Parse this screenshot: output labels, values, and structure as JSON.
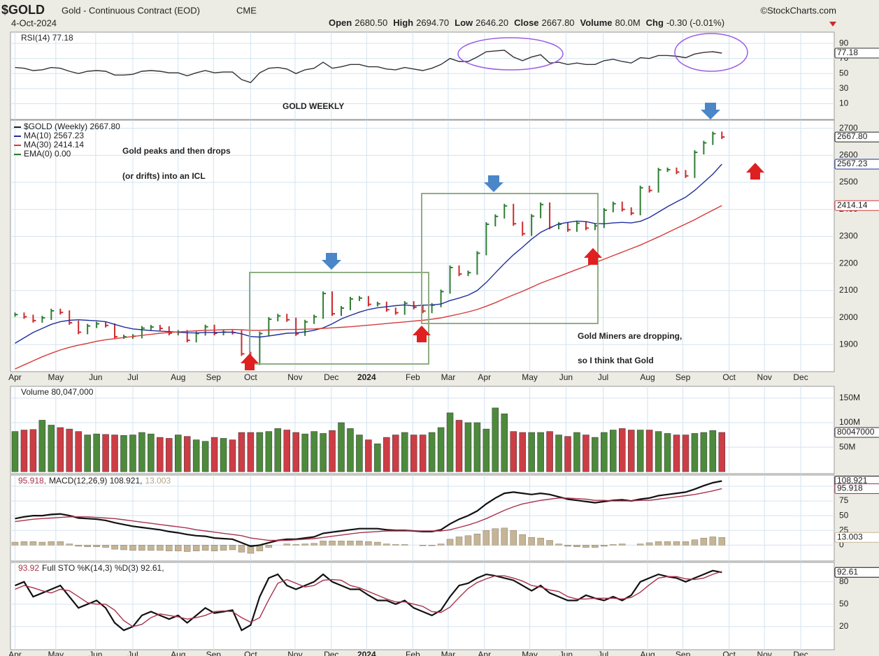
{
  "header": {
    "symbol": "$GOLD",
    "name": "Gold - Continuous Contract (EOD)",
    "exchange": "CME",
    "source": "©StockCharts.com",
    "date": "4-Oct-2024",
    "quote": [
      {
        "label": "Open",
        "value": "2680.50"
      },
      {
        "label": "High",
        "value": "2694.70"
      },
      {
        "label": "Low",
        "value": "2646.20"
      },
      {
        "label": "Close",
        "value": "2667.80"
      },
      {
        "label": "Volume",
        "value": "80.0M"
      },
      {
        "label": "Chg",
        "value": "-0.30 (-0.01%)"
      }
    ]
  },
  "annotations": [
    "GOLD WEEKLY",
    "Gold peaks and then drops",
    "(or drifts) into an ICL",
    "Gold Miners are dropping,",
    "so I think that Gold"
  ],
  "chart_data": [
    {
      "type": "line",
      "label": "RSI(14) 77.18",
      "ylim": [
        -11,
        105
      ],
      "yticks": [
        10,
        30,
        50,
        70,
        90
      ],
      "grid": true,
      "series": [
        {
          "name": "RSI(14)",
          "type": "line",
          "color": "#333333",
          "last_label": "77.18",
          "values": [
            58,
            57,
            54,
            55,
            58,
            57,
            53,
            50,
            53,
            54,
            53,
            48,
            48,
            49,
            53,
            54,
            53,
            51,
            51,
            47,
            51,
            54,
            51,
            52,
            52,
            42,
            38,
            51,
            57,
            58,
            56,
            50,
            55,
            57,
            65,
            57,
            59,
            62,
            62,
            59,
            59,
            56,
            55,
            58,
            56,
            54,
            57,
            62,
            70,
            66,
            66,
            72,
            79,
            80,
            81,
            72,
            67,
            72,
            75,
            64,
            65,
            62,
            64,
            62,
            62,
            67,
            69,
            66,
            64,
            71,
            70,
            74,
            74,
            73,
            71,
            76,
            78,
            79,
            77.18
          ]
        }
      ]
    },
    {
      "type": "line",
      "xlim": [
        -0.5,
        90.4
      ],
      "xticks": [
        {
          "value": 0,
          "label": "Apr"
        },
        {
          "value": 4.5,
          "label": "May"
        },
        {
          "value": 8.9,
          "label": "Jun"
        },
        {
          "value": 13,
          "label": "Jul"
        },
        {
          "value": 18,
          "label": "Aug"
        },
        {
          "value": 21.9,
          "label": "Sep"
        },
        {
          "value": 26,
          "label": "Oct"
        },
        {
          "value": 30.9,
          "label": "Nov"
        },
        {
          "value": 34.9,
          "label": "Dec"
        },
        {
          "value": 38.8,
          "label": "2024"
        },
        {
          "value": 43.9,
          "label": "Feb"
        },
        {
          "value": 47.8,
          "label": "Mar"
        },
        {
          "value": 51.8,
          "label": "Apr"
        },
        {
          "value": 56.8,
          "label": "May"
        },
        {
          "value": 60.8,
          "label": "Jun"
        },
        {
          "value": 64.9,
          "label": "Jul"
        },
        {
          "value": 69.8,
          "label": "Aug"
        },
        {
          "value": 73.7,
          "label": "Sep"
        },
        {
          "value": 78.8,
          "label": "Oct"
        },
        {
          "value": 82.7,
          "label": "Nov"
        },
        {
          "value": 86.7,
          "label": "Dec"
        }
      ],
      "ylim": [
        1800,
        2730
      ],
      "yticks": [
        1900,
        2000,
        2100,
        2200,
        2300,
        2400,
        2500,
        2600,
        2700
      ],
      "grid": true,
      "legend_extra": {
        "name": "EMA(0) 0.00",
        "color": "#2e7d32"
      },
      "series": [
        {
          "name": "$GOLD (Weekly) 2667.80",
          "type": "candle",
          "color": "#222222",
          "up_color": "#2e7d32",
          "down_color": "#cc2b2b",
          "last_label": "2667.80",
          "values": [
            2011,
            2003,
            1989,
            1999,
            2025,
            2019,
            1981,
            1946,
            1969,
            1977,
            1971,
            1929,
            1929,
            1931,
            1961,
            1965,
            1960,
            1942,
            1946,
            1916,
            1941,
            1966,
            1942,
            1946,
            1945,
            1866,
            1832,
            1941,
            1994,
            2006,
            1992,
            1940,
            1984,
            2003,
            2089,
            2014,
            2035,
            2069,
            2072,
            2049,
            2051,
            2029,
            2018,
            2053,
            2038,
            2024,
            2046,
            2096,
            2185,
            2161,
            2166,
            2238,
            2345,
            2374,
            2413,
            2347,
            2310,
            2375,
            2418,
            2334,
            2345,
            2325,
            2349,
            2331,
            2339,
            2397,
            2421,
            2400,
            2386,
            2480,
            2470,
            2546,
            2547,
            2538,
            2524,
            2611,
            2646,
            2680,
            2667.8
          ]
        },
        {
          "name": "MA(10) 2567.23",
          "type": "line",
          "color": "#1f2f9a",
          "last_label": "2567.23",
          "values": [
            1905,
            1925,
            1945,
            1960,
            1975,
            1985,
            1990,
            1992,
            1990,
            1988,
            1985,
            1975,
            1965,
            1958,
            1955,
            1952,
            1950,
            1948,
            1946,
            1944,
            1943,
            1945,
            1945,
            1946,
            1946,
            1940,
            1930,
            1928,
            1932,
            1937,
            1942,
            1943,
            1947,
            1953,
            1962,
            1977,
            1995,
            2008,
            2020,
            2030,
            2036,
            2040,
            2044,
            2047,
            2043,
            2046,
            2047,
            2050,
            2063,
            2072,
            2083,
            2100,
            2130,
            2165,
            2200,
            2232,
            2260,
            2290,
            2315,
            2332,
            2346,
            2352,
            2357,
            2355,
            2348,
            2347,
            2350,
            2352,
            2350,
            2356,
            2370,
            2390,
            2410,
            2428,
            2445,
            2470,
            2500,
            2530,
            2567.23
          ]
        },
        {
          "name": "MA(30) 2414.14",
          "type": "line",
          "color": "#d63a3a",
          "last_label": "2414.14",
          "values": [
            1810,
            1825,
            1840,
            1855,
            1868,
            1880,
            1890,
            1898,
            1905,
            1912,
            1918,
            1922,
            1926,
            1930,
            1934,
            1938,
            1942,
            1945,
            1947,
            1949,
            1951,
            1953,
            1954,
            1955,
            1956,
            1955,
            1953,
            1953,
            1954,
            1955,
            1956,
            1956,
            1957,
            1958,
            1960,
            1962,
            1964,
            1966,
            1969,
            1972,
            1975,
            1978,
            1981,
            1984,
            1987,
            1990,
            1994,
            1999,
            2006,
            2013,
            2021,
            2030,
            2042,
            2055,
            2070,
            2084,
            2097,
            2112,
            2127,
            2140,
            2152,
            2165,
            2178,
            2190,
            2203,
            2216,
            2229,
            2242,
            2255,
            2268,
            2283,
            2298,
            2314,
            2330,
            2346,
            2362,
            2380,
            2397,
            2414.14
          ]
        }
      ]
    },
    {
      "type": "bar",
      "label": "Volume 80,047,000",
      "ylim": [
        -4,
        174
      ],
      "yticks": [
        {
          "value": 50,
          "label": "50M"
        },
        {
          "value": 100,
          "label": "100M"
        },
        {
          "value": 150,
          "label": "150M"
        }
      ],
      "grid": true,
      "series": [
        {
          "name": "Volume",
          "type": "volume",
          "up_color": "#4d8a3c",
          "down_color": "#cc3d45",
          "last_label": "80047000",
          "values": [
            82,
            85,
            86,
            105,
            95,
            90,
            87,
            82,
            75,
            77,
            76,
            75,
            74,
            75,
            80,
            77,
            70,
            68,
            75,
            72,
            65,
            62,
            70,
            68,
            65,
            80,
            80,
            80,
            82,
            88,
            85,
            80,
            77,
            82,
            78,
            84,
            100,
            88,
            75,
            65,
            57,
            70,
            75,
            80,
            75,
            75,
            80,
            90,
            120,
            105,
            100,
            100,
            87,
            130,
            118,
            82,
            80,
            80,
            80,
            82,
            75,
            72,
            80,
            75,
            70,
            80,
            85,
            88,
            85,
            85,
            85,
            82,
            78,
            75,
            75,
            78,
            80,
            84,
            80.047
          ]
        }
      ]
    },
    {
      "type": "line",
      "ylim": [
        -27,
        119
      ],
      "yticks": [
        0,
        25,
        50,
        75,
        100
      ],
      "grid": true,
      "series": [
        {
          "name": "13.003",
          "type": "hist",
          "color": "#c5b596",
          "last_label": "13.003",
          "values": [
            5,
            6,
            6,
            5,
            6,
            6,
            2,
            -2,
            -3,
            -3,
            -4,
            -7,
            -8,
            -9,
            -9,
            -9,
            -9,
            -10,
            -10,
            -11,
            -10,
            -9,
            -10,
            -9,
            -8,
            -12,
            -14,
            -10,
            -4,
            0,
            2,
            1,
            2,
            3,
            7,
            7,
            7,
            7,
            7,
            6,
            5,
            2,
            1,
            1,
            0,
            -1,
            -1,
            2,
            10,
            14,
            16,
            19,
            25,
            28,
            29,
            25,
            18,
            13,
            12,
            8,
            2,
            -2,
            -3,
            -4,
            -4,
            -2,
            1,
            2,
            0,
            2,
            4,
            6,
            6,
            6,
            6,
            9,
            12,
            14,
            13.003
          ]
        },
        {
          "name": "MACD(12,26,9) 108.921,",
          "type": "line",
          "color": "#111111",
          "width": 2.2,
          "last_label": "108.921",
          "values": [
            45,
            48,
            50,
            50,
            52,
            53,
            50,
            46,
            45,
            44,
            42,
            38,
            35,
            32,
            30,
            28,
            26,
            23,
            21,
            18,
            16,
            15,
            12,
            11,
            10,
            4,
            -2,
            0,
            4,
            8,
            10,
            10,
            12,
            14,
            20,
            22,
            24,
            26,
            28,
            28,
            28,
            26,
            25,
            25,
            24,
            23,
            23,
            26,
            36,
            44,
            50,
            58,
            70,
            80,
            88,
            90,
            88,
            86,
            88,
            86,
            82,
            78,
            76,
            74,
            72,
            74,
            76,
            77,
            75,
            78,
            80,
            84,
            86,
            88,
            90,
            95,
            101,
            106,
            108.921
          ]
        },
        {
          "name": "95.918,",
          "type": "line",
          "color": "#a8324a",
          "last_label": "95.918",
          "values": [
            40,
            42,
            44,
            45,
            46,
            47,
            48,
            48,
            48,
            47,
            46,
            45,
            43,
            41,
            39,
            37,
            35,
            33,
            31,
            29,
            26,
            24,
            22,
            20,
            18,
            16,
            12,
            10,
            8,
            8,
            8,
            9,
            10,
            11,
            13,
            15,
            17,
            19,
            21,
            22,
            23,
            24,
            24,
            24,
            24,
            24,
            24,
            24,
            26,
            30,
            34,
            39,
            45,
            52,
            59,
            65,
            70,
            73,
            76,
            78,
            80,
            80,
            79,
            78,
            76,
            76,
            75,
            75,
            75,
            76,
            76,
            78,
            80,
            82,
            84,
            86,
            89,
            92,
            95.918
          ]
        }
      ]
    },
    {
      "type": "line",
      "ylim": [
        -11,
        106
      ],
      "yticks": [
        20,
        50,
        80
      ],
      "grid": true,
      "series": [
        {
          "name": "Full STO %K(14,3) %D(3) 92.61,",
          "type": "line",
          "color": "#111111",
          "width": 2.2,
          "last_label": "92.61",
          "values": [
            75,
            80,
            60,
            65,
            70,
            75,
            60,
            45,
            50,
            55,
            45,
            25,
            15,
            20,
            35,
            40,
            35,
            30,
            35,
            25,
            35,
            45,
            38,
            40,
            42,
            15,
            22,
            60,
            85,
            90,
            75,
            70,
            75,
            80,
            90,
            80,
            75,
            70,
            70,
            62,
            55,
            55,
            50,
            55,
            45,
            40,
            35,
            42,
            60,
            75,
            78,
            85,
            90,
            88,
            85,
            82,
            75,
            68,
            75,
            65,
            60,
            55,
            55,
            62,
            58,
            55,
            60,
            55,
            62,
            80,
            85,
            90,
            87,
            85,
            80,
            85,
            90,
            95,
            92.61
          ]
        },
        {
          "name": "93.92",
          "type": "line",
          "color": "#a8324a",
          "values": [
            70,
            75,
            72,
            68,
            65,
            70,
            68,
            60,
            52,
            50,
            50,
            42,
            28,
            20,
            23,
            32,
            37,
            35,
            33,
            30,
            32,
            35,
            40,
            41,
            40,
            32,
            26,
            32,
            56,
            78,
            83,
            78,
            73,
            75,
            82,
            83,
            82,
            75,
            72,
            67,
            62,
            57,
            53,
            53,
            50,
            47,
            40,
            39,
            46,
            59,
            71,
            79,
            84,
            88,
            88,
            85,
            81,
            75,
            73,
            69,
            67,
            60,
            57,
            57,
            58,
            58,
            58,
            57,
            59,
            66,
            76,
            85,
            87,
            87,
            84,
            83,
            85,
            90,
            93.92
          ]
        }
      ]
    }
  ]
}
